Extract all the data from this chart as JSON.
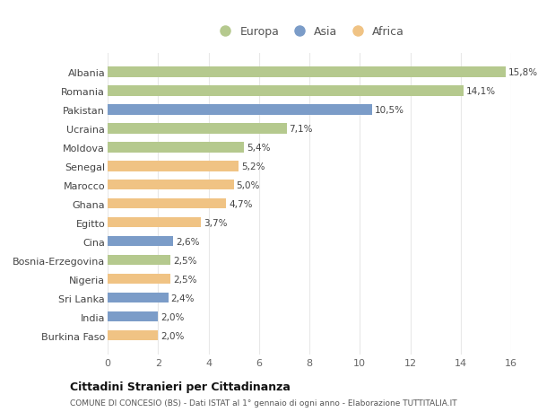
{
  "categories": [
    "Albania",
    "Romania",
    "Pakistan",
    "Ucraina",
    "Moldova",
    "Senegal",
    "Marocco",
    "Ghana",
    "Egitto",
    "Cina",
    "Bosnia-Erzegovina",
    "Nigeria",
    "Sri Lanka",
    "India",
    "Burkina Faso"
  ],
  "values": [
    15.8,
    14.1,
    10.5,
    7.1,
    5.4,
    5.2,
    5.0,
    4.7,
    3.7,
    2.6,
    2.5,
    2.5,
    2.4,
    2.0,
    2.0
  ],
  "labels": [
    "15,8%",
    "14,1%",
    "10,5%",
    "7,1%",
    "5,4%",
    "5,2%",
    "5,0%",
    "4,7%",
    "3,7%",
    "2,6%",
    "2,5%",
    "2,5%",
    "2,4%",
    "2,0%",
    "2,0%"
  ],
  "continents": [
    "Europa",
    "Europa",
    "Asia",
    "Europa",
    "Europa",
    "Africa",
    "Africa",
    "Africa",
    "Africa",
    "Asia",
    "Europa",
    "Africa",
    "Asia",
    "Asia",
    "Africa"
  ],
  "colors": {
    "Europa": "#b5c98e",
    "Asia": "#7b9cc8",
    "Africa": "#f0c384"
  },
  "background_color": "#ffffff",
  "title": "Cittadini Stranieri per Cittadinanza",
  "subtitle": "COMUNE DI CONCESIO (BS) - Dati ISTAT al 1° gennaio di ogni anno - Elaborazione TUTTITALIA.IT",
  "xlim": [
    0,
    16
  ],
  "xticks": [
    0,
    2,
    4,
    6,
    8,
    10,
    12,
    14,
    16
  ],
  "grid_color": "#e8e8e8",
  "bar_height": 0.55,
  "legend_labels": [
    "Europa",
    "Asia",
    "Africa"
  ]
}
